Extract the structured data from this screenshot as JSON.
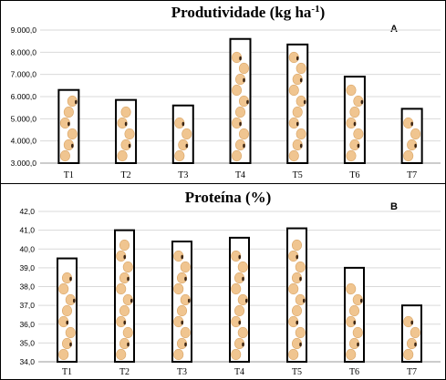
{
  "chart_data": [
    {
      "type": "bar",
      "title": "Produtividade (kg ha",
      "title_sup": "-1",
      "title_close": ")",
      "panel_label": "A",
      "categories": [
        "T1",
        "T2",
        "T3",
        "T4",
        "T5",
        "T6",
        "T7"
      ],
      "values": [
        6300,
        5850,
        5600,
        8600,
        8350,
        6900,
        5450
      ],
      "ylim": [
        3000,
        9000
      ],
      "yticks": [
        "3.000,0",
        "4.000,0",
        "5.000,0",
        "6.000,0",
        "7.000,0",
        "8.000,0",
        "9.000,0"
      ],
      "grid": true,
      "bar_fill": "#ffffff",
      "bar_edge": "#000000",
      "bean_color": "#f0c590"
    },
    {
      "type": "bar",
      "title": "Proteína (%)",
      "panel_label": "B",
      "categories": [
        "T1",
        "T2",
        "T3",
        "T4",
        "T5",
        "T6",
        "T7"
      ],
      "values": [
        39.5,
        41.0,
        40.4,
        40.6,
        41.1,
        39.0,
        37.0
      ],
      "ylim": [
        34,
        42
      ],
      "yticks": [
        "34,0",
        "35,0",
        "36,0",
        "37,0",
        "38,0",
        "39,0",
        "40,0",
        "41,0",
        "42,0"
      ],
      "grid": true,
      "bar_fill": "#ffffff",
      "bar_edge": "#000000",
      "bean_color": "#f0c590"
    }
  ]
}
